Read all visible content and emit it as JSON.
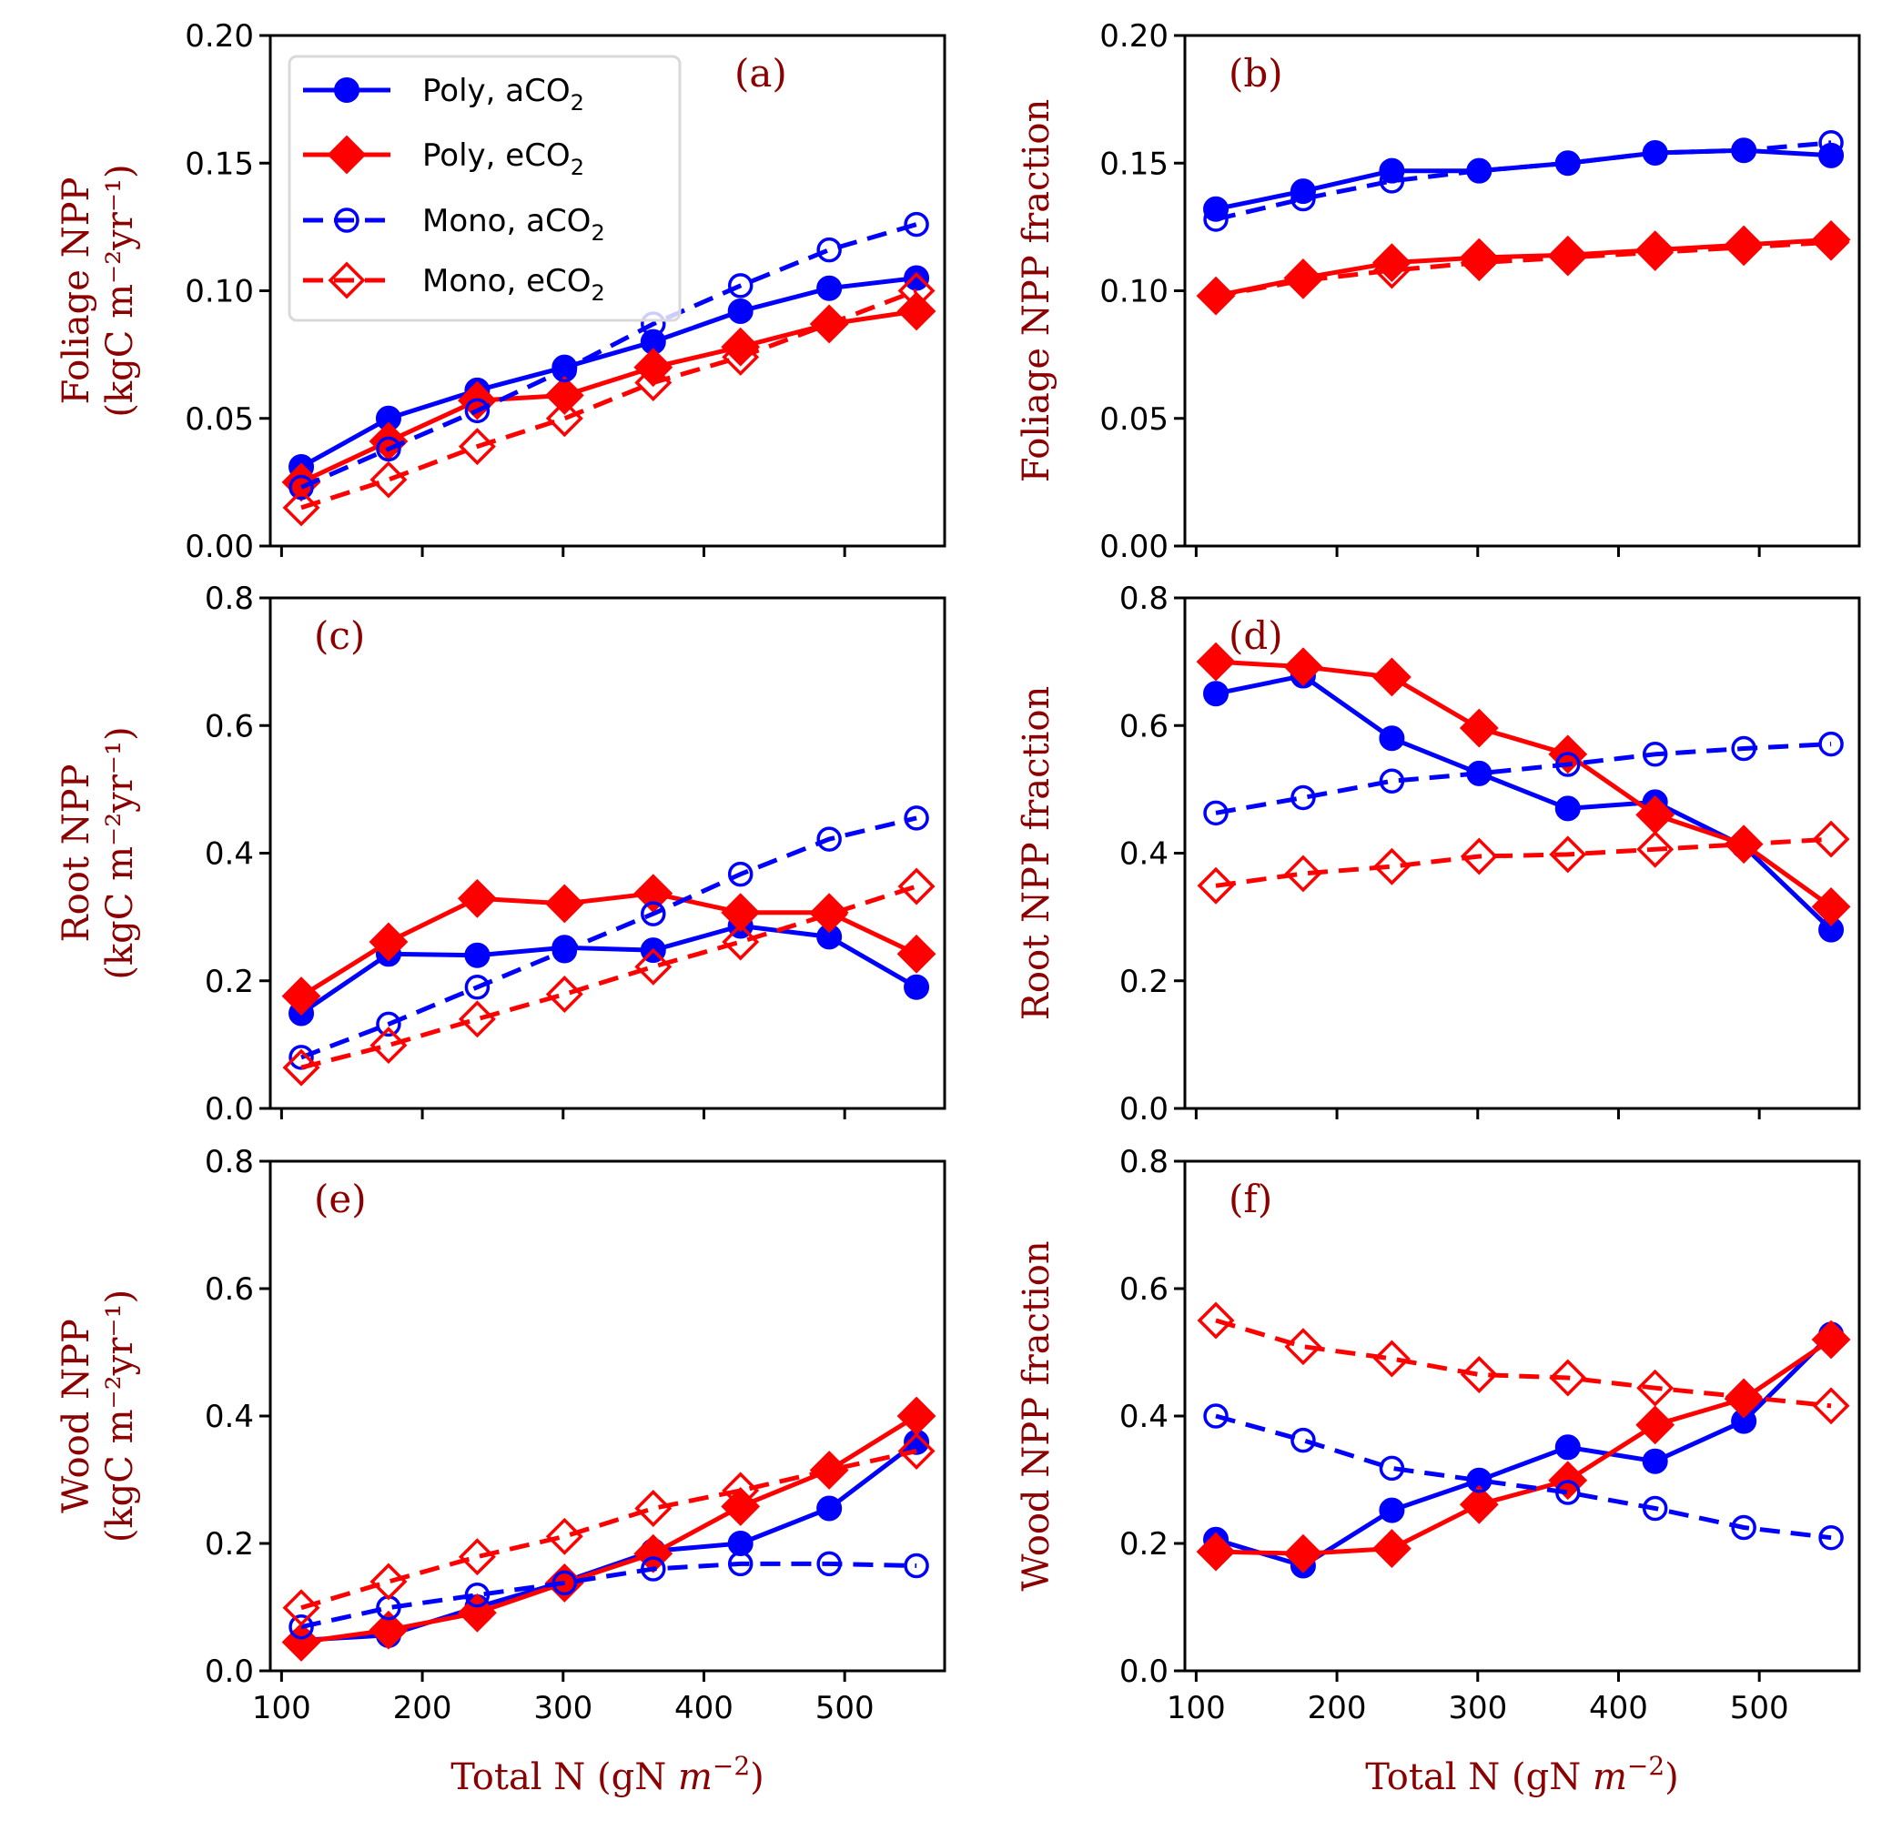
{
  "figure": {
    "xlabel": "Total N (gN m⁻²)",
    "xlabel_main": "Total N (gN ",
    "xlabel_unit": "m",
    "xlabel_exp": "−2",
    "xlabel_close": ")",
    "legend": [
      {
        "label_main": "Poly, aCO",
        "label_sub": "2",
        "series": "poly_a"
      },
      {
        "label_main": "Poly, eCO",
        "label_sub": "2",
        "series": "poly_e"
      },
      {
        "label_main": "Mono, aCO",
        "label_sub": "2",
        "series": "mono_a"
      },
      {
        "label_main": "Mono, eCO",
        "label_sub": "2",
        "series": "mono_e"
      }
    ],
    "colors": {
      "blue": "#0000ff",
      "red": "#ff0000",
      "label": "#8b0000"
    }
  },
  "chart_data": [
    {
      "type": "line",
      "panel": "(a)",
      "title": "",
      "ylabel": "Foliage NPP (kgC m⁻²yr⁻¹)",
      "ylabel_line1": "Foliage NPP",
      "ylabel_line2": "(kgC m⁻²yr⁻¹)",
      "xlabel": "Total N (gN m⁻²)",
      "xlim": [
        92,
        571
      ],
      "ylim": [
        0,
        0.2
      ],
      "yticks": [
        "0.00",
        "0.05",
        "0.10",
        "0.15",
        "0.20"
      ],
      "xticks": [
        "100",
        "200",
        "300",
        "400",
        "500"
      ],
      "legend": "top-left",
      "grid": false,
      "x": [
        114,
        176,
        239,
        301,
        364,
        426,
        489,
        551
      ],
      "series": [
        {
          "name": "Poly, aCO2",
          "key": "poly_a",
          "values": [
            0.031,
            0.05,
            0.061,
            0.07,
            0.08,
            0.092,
            0.101,
            0.105
          ]
        },
        {
          "name": "Poly, eCO2",
          "key": "poly_e",
          "values": [
            0.025,
            0.041,
            0.057,
            0.059,
            0.07,
            0.078,
            0.087,
            0.092
          ]
        },
        {
          "name": "Mono, aCO2",
          "key": "mono_a",
          "values": [
            0.023,
            0.038,
            0.053,
            0.069,
            0.087,
            0.102,
            0.116,
            0.126
          ]
        },
        {
          "name": "Mono, eCO2",
          "key": "mono_e",
          "values": [
            0.015,
            0.026,
            0.039,
            0.05,
            0.064,
            0.074,
            0.087,
            0.1
          ]
        }
      ]
    },
    {
      "type": "line",
      "panel": "(b)",
      "title": "",
      "ylabel": "Foliage NPP fraction",
      "ylabel_line1": "Foliage NPP fraction",
      "ylabel_line2": "",
      "xlabel": "Total N (gN m⁻²)",
      "xlim": [
        92,
        571
      ],
      "ylim": [
        0,
        0.2
      ],
      "yticks": [
        "0.00",
        "0.05",
        "0.10",
        "0.15",
        "0.20"
      ],
      "xticks": [
        "100",
        "200",
        "300",
        "400",
        "500"
      ],
      "grid": false,
      "x": [
        114,
        176,
        239,
        301,
        364,
        426,
        489,
        551
      ],
      "series": [
        {
          "name": "Poly, aCO2",
          "key": "poly_a",
          "values": [
            0.132,
            0.139,
            0.147,
            0.147,
            0.15,
            0.154,
            0.155,
            0.153
          ]
        },
        {
          "name": "Poly, eCO2",
          "key": "poly_e",
          "values": [
            0.098,
            0.105,
            0.111,
            0.113,
            0.114,
            0.116,
            0.118,
            0.12
          ]
        },
        {
          "name": "Mono, aCO2",
          "key": "mono_a",
          "values": [
            0.128,
            0.136,
            0.143,
            0.147,
            0.15,
            0.154,
            0.155,
            0.158
          ]
        },
        {
          "name": "Mono, eCO2",
          "key": "mono_e",
          "values": [
            0.098,
            0.104,
            0.108,
            0.111,
            0.113,
            0.115,
            0.117,
            0.119
          ]
        }
      ]
    },
    {
      "type": "line",
      "panel": "(c)",
      "title": "",
      "ylabel": "Root NPP (kgC m⁻²yr⁻¹)",
      "ylabel_line1": "Root NPP",
      "ylabel_line2": "(kgC m⁻²yr⁻¹)",
      "xlabel": "Total N (gN m⁻²)",
      "xlim": [
        92,
        571
      ],
      "ylim": [
        0,
        0.8
      ],
      "yticks": [
        "0.0",
        "0.2",
        "0.4",
        "0.6",
        "0.8"
      ],
      "xticks": [
        "100",
        "200",
        "300",
        "400",
        "500"
      ],
      "grid": false,
      "x": [
        114,
        176,
        239,
        301,
        364,
        426,
        489,
        551
      ],
      "series": [
        {
          "name": "Poly, aCO2",
          "key": "poly_a",
          "values": [
            0.149,
            0.242,
            0.24,
            0.252,
            0.248,
            0.286,
            0.269,
            0.19
          ]
        },
        {
          "name": "Poly, eCO2",
          "key": "poly_e",
          "values": [
            0.176,
            0.261,
            0.329,
            0.321,
            0.337,
            0.307,
            0.307,
            0.242
          ]
        },
        {
          "name": "Mono, aCO2",
          "key": "mono_a",
          "values": [
            0.08,
            0.132,
            0.19,
            0.247,
            0.305,
            0.367,
            0.422,
            0.455
          ]
        },
        {
          "name": "Mono, eCO2",
          "key": "mono_e",
          "values": [
            0.064,
            0.099,
            0.14,
            0.179,
            0.222,
            0.261,
            0.304,
            0.348
          ]
        }
      ]
    },
    {
      "type": "line",
      "panel": "(d)",
      "title": "",
      "ylabel": "Root NPP fraction",
      "ylabel_line1": "Root NPP fraction",
      "ylabel_line2": "",
      "xlabel": "Total N (gN m⁻²)",
      "xlim": [
        92,
        571
      ],
      "ylim": [
        0,
        0.8
      ],
      "yticks": [
        "0.0",
        "0.2",
        "0.4",
        "0.6",
        "0.8"
      ],
      "xticks": [
        "100",
        "200",
        "300",
        "400",
        "500"
      ],
      "grid": false,
      "x": [
        114,
        176,
        239,
        301,
        364,
        426,
        489,
        551
      ],
      "series": [
        {
          "name": "Poly, aCO2",
          "key": "poly_a",
          "values": [
            0.65,
            0.678,
            0.58,
            0.525,
            0.47,
            0.48,
            0.411,
            0.28
          ]
        },
        {
          "name": "Poly, eCO2",
          "key": "poly_e",
          "values": [
            0.7,
            0.692,
            0.676,
            0.596,
            0.555,
            0.46,
            0.414,
            0.316
          ]
        },
        {
          "name": "Mono, aCO2",
          "key": "mono_a",
          "values": [
            0.463,
            0.487,
            0.513,
            0.525,
            0.539,
            0.555,
            0.564,
            0.571
          ]
        },
        {
          "name": "Mono, eCO2",
          "key": "mono_e",
          "values": [
            0.349,
            0.368,
            0.379,
            0.395,
            0.398,
            0.406,
            0.414,
            0.422
          ]
        }
      ]
    },
    {
      "type": "line",
      "panel": "(e)",
      "title": "",
      "ylabel": "Wood NPP (kgC m⁻²yr⁻¹)",
      "ylabel_line1": "Wood NPP",
      "ylabel_line2": "(kgC m⁻²yr⁻¹)",
      "xlabel": "Total N (gN m⁻²)",
      "xlim": [
        92,
        571
      ],
      "ylim": [
        0,
        0.8
      ],
      "yticks": [
        "0.0",
        "0.2",
        "0.4",
        "0.6",
        "0.8"
      ],
      "xticks": [
        "100",
        "200",
        "300",
        "400",
        "500"
      ],
      "grid": false,
      "x": [
        114,
        176,
        239,
        301,
        364,
        426,
        489,
        551
      ],
      "series": [
        {
          "name": "Poly, aCO2",
          "key": "poly_a",
          "values": [
            0.048,
            0.056,
            0.1,
            0.14,
            0.188,
            0.2,
            0.255,
            0.359
          ]
        },
        {
          "name": "Poly, eCO2",
          "key": "poly_e",
          "values": [
            0.045,
            0.064,
            0.091,
            0.138,
            0.184,
            0.258,
            0.315,
            0.4
          ]
        },
        {
          "name": "Mono, aCO2",
          "key": "mono_a",
          "values": [
            0.069,
            0.099,
            0.119,
            0.138,
            0.16,
            0.168,
            0.168,
            0.165
          ]
        },
        {
          "name": "Mono, eCO2",
          "key": "mono_e",
          "values": [
            0.099,
            0.14,
            0.179,
            0.211,
            0.255,
            0.283,
            0.315,
            0.345
          ]
        }
      ]
    },
    {
      "type": "line",
      "panel": "(f)",
      "title": "",
      "ylabel": "Wood NPP fraction",
      "ylabel_line1": "Wood NPP fraction",
      "ylabel_line2": "",
      "xlabel": "Total N (gN m⁻²)",
      "xlim": [
        92,
        571
      ],
      "ylim": [
        0,
        0.8
      ],
      "yticks": [
        "0.0",
        "0.2",
        "0.4",
        "0.6",
        "0.8"
      ],
      "xticks": [
        "100",
        "200",
        "300",
        "400",
        "500"
      ],
      "grid": false,
      "x": [
        114,
        176,
        239,
        301,
        364,
        426,
        489,
        551
      ],
      "series": [
        {
          "name": "Poly, aCO2",
          "key": "poly_a",
          "values": [
            0.206,
            0.165,
            0.252,
            0.299,
            0.351,
            0.329,
            0.392,
            0.528
          ]
        },
        {
          "name": "Poly, eCO2",
          "key": "poly_e",
          "values": [
            0.187,
            0.184,
            0.192,
            0.261,
            0.299,
            0.386,
            0.427,
            0.52
          ]
        },
        {
          "name": "Mono, aCO2",
          "key": "mono_a",
          "values": [
            0.4,
            0.362,
            0.318,
            0.299,
            0.28,
            0.255,
            0.225,
            0.209
          ]
        },
        {
          "name": "Mono, eCO2",
          "key": "mono_e",
          "values": [
            0.55,
            0.509,
            0.49,
            0.465,
            0.46,
            0.444,
            0.43,
            0.416
          ]
        }
      ]
    }
  ]
}
